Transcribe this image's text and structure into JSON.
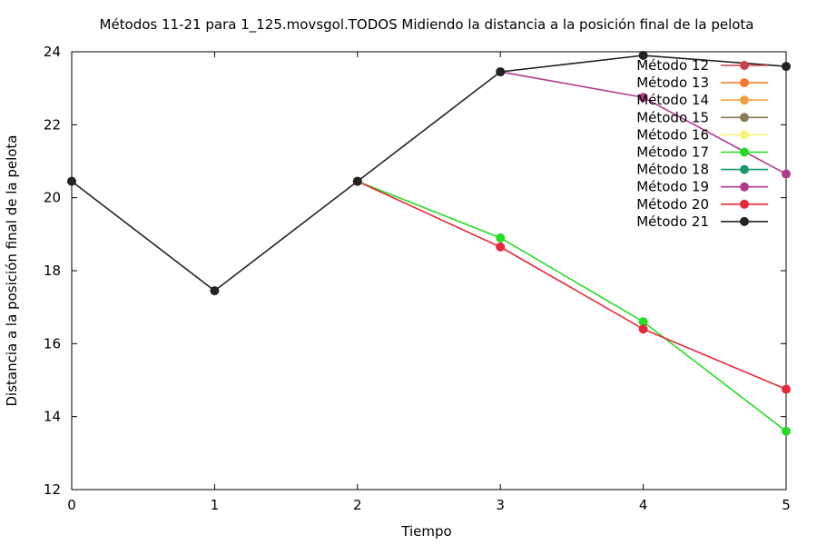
{
  "chart_data": {
    "type": "line",
    "title": "Métodos 11-21 para 1_125.movsgol.TODOS Midiendo la distancia a la posición final de la pelota",
    "xlabel": "Tiempo",
    "ylabel": "Distancia a la posición final de la pelota",
    "xlim": [
      0,
      5
    ],
    "ylim": [
      12,
      24
    ],
    "x_ticks": [
      "0",
      "1",
      "2",
      "3",
      "4",
      "5"
    ],
    "y_ticks": [
      "12",
      "14",
      "16",
      "18",
      "20",
      "22",
      "24"
    ],
    "grid": false,
    "legend_position": "top-right",
    "series": [
      {
        "name": "Método 12",
        "color": "#c8404a",
        "x": [],
        "y": []
      },
      {
        "name": "Método 13",
        "color": "#f07a30",
        "x": [],
        "y": []
      },
      {
        "name": "Método 14",
        "color": "#f5a040",
        "x": [],
        "y": []
      },
      {
        "name": "Método 15",
        "color": "#8a7a5a",
        "x": [],
        "y": []
      },
      {
        "name": "Método 16",
        "color": "#f5f57a",
        "x": [],
        "y": []
      },
      {
        "name": "Método 17",
        "color": "#22dd22",
        "x": [
          2,
          3,
          4,
          5
        ],
        "y": [
          20.45,
          18.9,
          16.6,
          13.6
        ]
      },
      {
        "name": "Método 18",
        "color": "#149970",
        "x": [],
        "y": []
      },
      {
        "name": "Método 19",
        "color": "#b23a8e",
        "x": [
          3,
          4,
          5
        ],
        "y": [
          23.45,
          22.75,
          20.65
        ]
      },
      {
        "name": "Método 20",
        "color": "#e8283a",
        "x": [
          2,
          3,
          4,
          5
        ],
        "y": [
          20.45,
          18.65,
          16.4,
          14.75
        ]
      },
      {
        "name": "Método 21",
        "color": "#222222",
        "x": [
          0,
          1,
          2,
          3,
          4,
          5
        ],
        "y": [
          20.45,
          17.45,
          20.45,
          23.45,
          23.9,
          23.6
        ]
      }
    ]
  }
}
